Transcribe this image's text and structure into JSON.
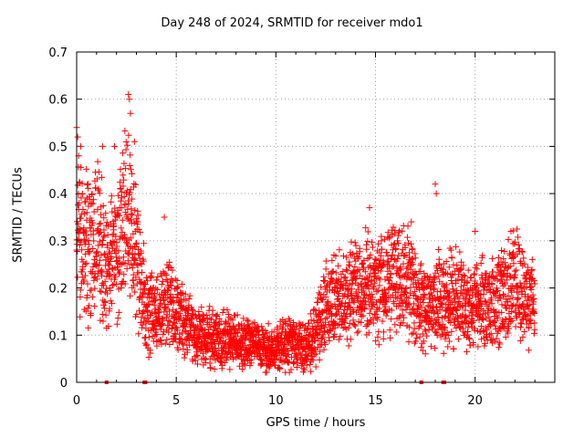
{
  "chart_data": {
    "type": "scatter",
    "title": "Day 248 of 2024, SRMTID for receiver mdo1",
    "xlabel": "GPS time / hours",
    "ylabel": "SRMTID / TECUs",
    "xlim": [
      0,
      24
    ],
    "ylim": [
      0,
      0.7
    ],
    "x_ticks": [
      "0",
      "5",
      "10",
      "15",
      "20"
    ],
    "y_ticks": [
      "0",
      "0.1",
      "0.2",
      "0.3",
      "0.4",
      "0.5",
      "0.6",
      "0.7"
    ],
    "grid": true,
    "marker": "+",
    "color": "#ff0000",
    "trend": [
      [
        0.0,
        0.3
      ],
      [
        0.5,
        0.29
      ],
      [
        1.0,
        0.31
      ],
      [
        1.5,
        0.25
      ],
      [
        2.0,
        0.27
      ],
      [
        2.5,
        0.38
      ],
      [
        3.0,
        0.28
      ],
      [
        3.5,
        0.15
      ],
      [
        4.0,
        0.14
      ],
      [
        4.5,
        0.18
      ],
      [
        5.0,
        0.14
      ],
      [
        5.5,
        0.12
      ],
      [
        6.0,
        0.1
      ],
      [
        6.5,
        0.1
      ],
      [
        7.0,
        0.09
      ],
      [
        7.5,
        0.09
      ],
      [
        8.0,
        0.09
      ],
      [
        8.5,
        0.08
      ],
      [
        9.0,
        0.08
      ],
      [
        9.5,
        0.07
      ],
      [
        10.0,
        0.07
      ],
      [
        10.5,
        0.08
      ],
      [
        11.0,
        0.08
      ],
      [
        11.5,
        0.07
      ],
      [
        12.0,
        0.11
      ],
      [
        12.5,
        0.16
      ],
      [
        13.0,
        0.18
      ],
      [
        13.5,
        0.19
      ],
      [
        14.0,
        0.19
      ],
      [
        14.5,
        0.2
      ],
      [
        15.0,
        0.2
      ],
      [
        15.5,
        0.21
      ],
      [
        16.0,
        0.22
      ],
      [
        16.5,
        0.24
      ],
      [
        17.0,
        0.18
      ],
      [
        17.5,
        0.16
      ],
      [
        18.0,
        0.18
      ],
      [
        18.5,
        0.17
      ],
      [
        19.0,
        0.19
      ],
      [
        19.5,
        0.16
      ],
      [
        20.0,
        0.16
      ],
      [
        20.5,
        0.17
      ],
      [
        21.0,
        0.17
      ],
      [
        21.5,
        0.19
      ],
      [
        22.0,
        0.21
      ],
      [
        22.5,
        0.19
      ],
      [
        23.0,
        0.17
      ]
    ],
    "highlights": [
      [
        0.0,
        0.54
      ],
      [
        0.05,
        0.52
      ],
      [
        0.1,
        0.48
      ],
      [
        0.2,
        0.5
      ],
      [
        1.3,
        0.5
      ],
      [
        1.9,
        0.5
      ],
      [
        2.6,
        0.61
      ],
      [
        2.65,
        0.6
      ],
      [
        2.7,
        0.57
      ],
      [
        2.9,
        0.51
      ],
      [
        4.4,
        0.35
      ],
      [
        14.7,
        0.37
      ],
      [
        16.8,
        0.34
      ],
      [
        18.0,
        0.42
      ],
      [
        18.05,
        0.4
      ],
      [
        21.8,
        0.32
      ],
      [
        20.0,
        0.32
      ]
    ],
    "zero_values": [
      1.5,
      3.4,
      3.45,
      17.3,
      18.4,
      18.45
    ]
  }
}
